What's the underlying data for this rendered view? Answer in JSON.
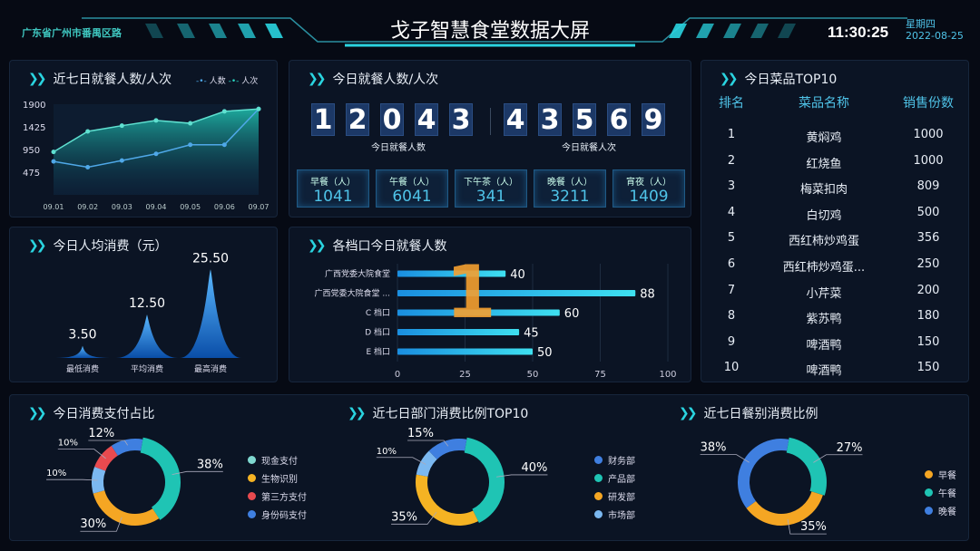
{
  "header": {
    "location": "广东省广州市番禺区路",
    "title": "戈子智慧食堂数据大屏",
    "time": "11:30:25",
    "weekday": "星期四",
    "date": "2022-08-25"
  },
  "colors": {
    "accent": "#2ad4e0",
    "teal": "#1fb8a8",
    "orange": "#f5a623",
    "red": "#e84a4f",
    "blue": "#3f7fe0",
    "light_blue": "#7bb8f0"
  },
  "week_chart": {
    "title": "近七日就餐人数/人次",
    "chart_data": {
      "type": "line",
      "categories": [
        "09.01",
        "09.02",
        "09.03",
        "09.04",
        "09.05",
        "09.06",
        "09.07"
      ],
      "yticks": [
        475,
        950,
        1425,
        1900
      ],
      "ylim": [
        0,
        1900
      ],
      "series": [
        {
          "name": "人数",
          "values": [
            700,
            580,
            720,
            860,
            1050,
            1050,
            1800
          ]
        },
        {
          "name": "人次",
          "values": [
            900,
            1330,
            1450,
            1560,
            1500,
            1750,
            1800
          ]
        }
      ],
      "legend_placement": "top-right"
    }
  },
  "today": {
    "title": "今日就餐人数/人次",
    "people_digits": [
      "1",
      "2",
      "0",
      "4",
      "3"
    ],
    "people_label": "今日就餐人数",
    "visits_digits": [
      "4",
      "3",
      "5",
      "6",
      "9"
    ],
    "visits_label": "今日就餐人次",
    "meals": [
      {
        "label": "早餐（人）",
        "value": "1041"
      },
      {
        "label": "午餐（人）",
        "value": "6041"
      },
      {
        "label": "下午茶（人）",
        "value": "341"
      },
      {
        "label": "晚餐（人）",
        "value": "3211"
      },
      {
        "label": "宵夜（人）",
        "value": "1409"
      }
    ]
  },
  "avg_spend": {
    "title": "今日人均消费（元）",
    "chart_data": {
      "type": "area",
      "categories": [
        "最低消费",
        "平均消费",
        "最高消费"
      ],
      "values": [
        3.5,
        12.5,
        25.5
      ],
      "labels": [
        "3.50",
        "12.50",
        "25.50"
      ]
    }
  },
  "stalls": {
    "title": "各档口今日就餐人数",
    "overlay_mark": "1",
    "chart_data": {
      "type": "bar",
      "orientation": "horizontal",
      "categories": [
        "广西党委大院食堂",
        "广西党委大院食堂 ...",
        "C 档口",
        "D 档口",
        "E 档口"
      ],
      "values": [
        40,
        88,
        60,
        45,
        50
      ],
      "xlim": [
        0,
        100
      ],
      "xticks": [
        "0",
        "25",
        "50",
        "75",
        "100"
      ]
    }
  },
  "top10": {
    "title": "今日菜品TOP10",
    "headers": [
      "排名",
      "菜品名称",
      "销售份数"
    ],
    "rows": [
      [
        "1",
        "黄焖鸡",
        "1000"
      ],
      [
        "2",
        "红烧鱼",
        "1000"
      ],
      [
        "3",
        "梅菜扣肉",
        "809"
      ],
      [
        "4",
        "白切鸡",
        "500"
      ],
      [
        "5",
        "西红柿炒鸡蛋",
        "356"
      ],
      [
        "6",
        "西红柿炒鸡蛋...",
        "250"
      ],
      [
        "7",
        "小芹菜",
        "200"
      ],
      [
        "8",
        "紫苏鸭",
        "180"
      ],
      [
        "9",
        "啤酒鸭",
        "150"
      ],
      [
        "10",
        "啤酒鸭",
        "150"
      ]
    ]
  },
  "donuts": [
    {
      "title": "今日消费支付占比",
      "chart_data": {
        "type": "pie",
        "slices": [
          {
            "name": "现金支付",
            "value": 38,
            "label": "38%",
            "color": "#1fc4b4"
          },
          {
            "name": "生物识别",
            "value": 30,
            "label": "30%",
            "color": "#f5a623"
          },
          {
            "value": 10,
            "label": "10%",
            "color": "#7bb8f0"
          },
          {
            "name": "第三方支付",
            "value": 10,
            "label": "10%",
            "color": "#e84a4f"
          },
          {
            "name": "身份码支付",
            "value": 12,
            "label": "12%",
            "color": "#3f7fe0"
          }
        ],
        "legend": [
          {
            "name": "现金支付",
            "color": "#7fd8d0"
          },
          {
            "name": "生物识别",
            "color": "#f5b323"
          },
          {
            "name": "第三方支付",
            "color": "#e84a4f"
          },
          {
            "name": "身份码支付",
            "color": "#3f7fe0"
          }
        ]
      }
    },
    {
      "title": "近七日部门消费比例TOP10",
      "chart_data": {
        "type": "pie",
        "slices": [
          {
            "name": "产品部",
            "value": 40,
            "label": "40%",
            "color": "#1fc4b4"
          },
          {
            "name": "研发部",
            "value": 35,
            "label": "35%",
            "color": "#f5b323"
          },
          {
            "name": "市场部",
            "value": 10,
            "label": "10%",
            "color": "#7bb8f0"
          },
          {
            "name": "财务部",
            "value": 15,
            "label": "15%",
            "color": "#3f7fe0"
          }
        ],
        "legend": [
          {
            "name": "财务部",
            "color": "#3f7fe0"
          },
          {
            "name": "产品部",
            "color": "#1fc4b4"
          },
          {
            "name": "研发部",
            "color": "#f5a623"
          },
          {
            "name": "市场部",
            "color": "#7bb8f0"
          }
        ]
      }
    },
    {
      "title": "近七日餐别消费比例",
      "chart_data": {
        "type": "pie",
        "slices": [
          {
            "name": "午餐",
            "value": 27,
            "label": "27%",
            "color": "#1fc4b4"
          },
          {
            "name": "早餐",
            "value": 35,
            "label": "35%",
            "color": "#f5a623"
          },
          {
            "name": "晚餐",
            "value": 38,
            "label": "38%",
            "color": "#3f7fe0"
          }
        ],
        "legend": [
          {
            "name": "早餐",
            "color": "#f5a623"
          },
          {
            "name": "午餐",
            "color": "#1fc4b4"
          },
          {
            "name": "晚餐",
            "color": "#3f7fe0"
          }
        ]
      }
    }
  ]
}
